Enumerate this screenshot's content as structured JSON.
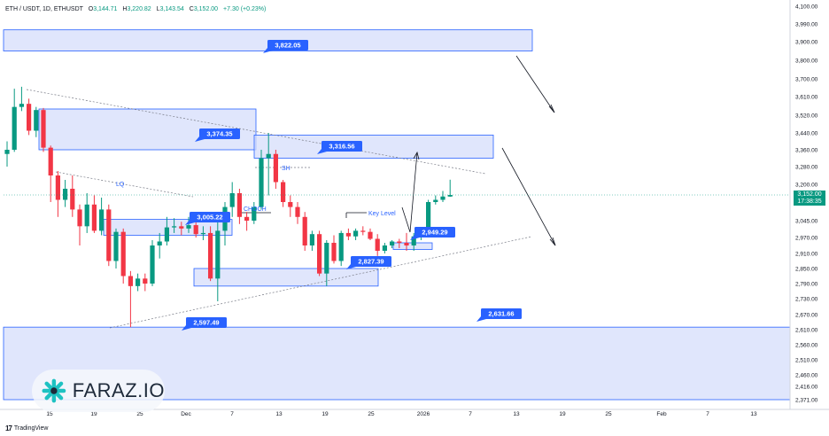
{
  "header": {
    "symbol": "ETH / USDT, 1D, ETHUSDT",
    "o_label": "O",
    "o_value": "3,144.71",
    "h_label": "H",
    "h_value": "3,220.82",
    "l_label": "L",
    "l_value": "3,143.54",
    "c_label": "C",
    "c_value": "3,152.00",
    "change": "+7.30 (+0.23%)"
  },
  "footer": {
    "tradingview_label": "TradingView"
  },
  "watermark": {
    "text": "FARAZ.IO"
  },
  "colors": {
    "up": "#089981",
    "down": "#f23645",
    "zone_fill": "#d6defb",
    "zone_border": "#2962ff",
    "label_bg": "#2962ff",
    "grid": "#e0e3eb",
    "text": "#131722"
  },
  "chart_data": {
    "type": "candlestick",
    "ylim": [
      2371,
      4100
    ],
    "y_ticks": [
      "4,100.00",
      "3,990.00",
      "3,900.00",
      "3,800.00",
      "3,700.00",
      "3,610.00",
      "3,520.00",
      "3,440.00",
      "3,360.00",
      "3,280.00",
      "3,200.00",
      "3,120.00",
      "3,045.00",
      "2,970.00",
      "2,910.00",
      "2,850.00",
      "2,790.00",
      "2,730.00",
      "2,670.00",
      "2,610.00",
      "2,560.00",
      "2,510.00",
      "2,460.00",
      "2,416.00",
      "2,371.00"
    ],
    "x_ticks": [
      "15",
      "19",
      "25",
      "Dec",
      "7",
      "13",
      "19",
      "25",
      "2026",
      "7",
      "13",
      "19",
      "25",
      "Feb",
      "7",
      "13"
    ],
    "current_price": "3,152.00",
    "countdown": "17:38:35",
    "candles": [
      {
        "o": 3340,
        "h": 3400,
        "l": 3280,
        "c": 3360
      },
      {
        "o": 3360,
        "h": 3650,
        "l": 3350,
        "c": 3560
      },
      {
        "o": 3560,
        "h": 3660,
        "l": 3540,
        "c": 3575
      },
      {
        "o": 3575,
        "h": 3600,
        "l": 3430,
        "c": 3450
      },
      {
        "o": 3450,
        "h": 3560,
        "l": 3420,
        "c": 3545
      },
      {
        "o": 3545,
        "h": 3555,
        "l": 3350,
        "c": 3370
      },
      {
        "o": 3370,
        "h": 3380,
        "l": 3120,
        "c": 3240
      },
      {
        "o": 3240,
        "h": 3260,
        "l": 3060,
        "c": 3130
      },
      {
        "o": 3130,
        "h": 3220,
        "l": 3100,
        "c": 3180
      },
      {
        "o": 3180,
        "h": 3240,
        "l": 3060,
        "c": 3090
      },
      {
        "o": 3090,
        "h": 3110,
        "l": 2940,
        "c": 3020
      },
      {
        "o": 3020,
        "h": 3160,
        "l": 2990,
        "c": 3110
      },
      {
        "o": 3110,
        "h": 3150,
        "l": 2990,
        "c": 3000
      },
      {
        "o": 3000,
        "h": 3140,
        "l": 2980,
        "c": 3090
      },
      {
        "o": 3090,
        "h": 3110,
        "l": 2860,
        "c": 2880
      },
      {
        "o": 2880,
        "h": 3010,
        "l": 2850,
        "c": 2995
      },
      {
        "o": 2995,
        "h": 3010,
        "l": 2790,
        "c": 2820
      },
      {
        "o": 2820,
        "h": 2840,
        "l": 2620,
        "c": 2780
      },
      {
        "o": 2780,
        "h": 2830,
        "l": 2760,
        "c": 2810
      },
      {
        "o": 2810,
        "h": 2830,
        "l": 2760,
        "c": 2790
      },
      {
        "o": 2790,
        "h": 2960,
        "l": 2780,
        "c": 2940
      },
      {
        "o": 2940,
        "h": 2990,
        "l": 2890,
        "c": 2955
      },
      {
        "o": 2955,
        "h": 3060,
        "l": 2940,
        "c": 3015
      },
      {
        "o": 3015,
        "h": 3055,
        "l": 2990,
        "c": 3020
      },
      {
        "o": 3020,
        "h": 3040,
        "l": 2980,
        "c": 3010
      },
      {
        "o": 3010,
        "h": 3060,
        "l": 2990,
        "c": 3025
      },
      {
        "o": 3025,
        "h": 3050,
        "l": 2970,
        "c": 2985
      },
      {
        "o": 2985,
        "h": 3020,
        "l": 2960,
        "c": 2990
      },
      {
        "o": 2990,
        "h": 3020,
        "l": 2800,
        "c": 2810
      },
      {
        "o": 2810,
        "h": 3040,
        "l": 2720,
        "c": 3000
      },
      {
        "o": 3000,
        "h": 3120,
        "l": 2940,
        "c": 3100
      },
      {
        "o": 3100,
        "h": 3210,
        "l": 3060,
        "c": 3160
      },
      {
        "o": 3160,
        "h": 3180,
        "l": 3030,
        "c": 3060
      },
      {
        "o": 3060,
        "h": 3080,
        "l": 3000,
        "c": 3045
      },
      {
        "o": 3045,
        "h": 3120,
        "l": 3030,
        "c": 3100
      },
      {
        "o": 3100,
        "h": 3360,
        "l": 3090,
        "c": 3320
      },
      {
        "o": 3320,
        "h": 3440,
        "l": 3150,
        "c": 3340
      },
      {
        "o": 3340,
        "h": 3360,
        "l": 3180,
        "c": 3210
      },
      {
        "o": 3210,
        "h": 3220,
        "l": 3100,
        "c": 3120
      },
      {
        "o": 3120,
        "h": 3150,
        "l": 3060,
        "c": 3100
      },
      {
        "o": 3100,
        "h": 3120,
        "l": 3030,
        "c": 3060
      },
      {
        "o": 3060,
        "h": 3080,
        "l": 2920,
        "c": 2940
      },
      {
        "o": 2940,
        "h": 3000,
        "l": 2920,
        "c": 2985
      },
      {
        "o": 2985,
        "h": 3000,
        "l": 2820,
        "c": 2830
      },
      {
        "o": 2830,
        "h": 2960,
        "l": 2780,
        "c": 2950
      },
      {
        "o": 2950,
        "h": 2980,
        "l": 2870,
        "c": 2880
      },
      {
        "o": 2880,
        "h": 3000,
        "l": 2860,
        "c": 2990
      },
      {
        "o": 2990,
        "h": 3010,
        "l": 2960,
        "c": 2975
      },
      {
        "o": 2975,
        "h": 3010,
        "l": 2960,
        "c": 3000
      },
      {
        "o": 3000,
        "h": 3020,
        "l": 2980,
        "c": 2995
      },
      {
        "o": 2995,
        "h": 3010,
        "l": 2960,
        "c": 2965
      },
      {
        "o": 2965,
        "h": 2985,
        "l": 2900,
        "c": 2920
      },
      {
        "o": 2920,
        "h": 2950,
        "l": 2910,
        "c": 2940
      },
      {
        "o": 2940,
        "h": 2960,
        "l": 2930,
        "c": 2955
      },
      {
        "o": 2955,
        "h": 2965,
        "l": 2930,
        "c": 2950
      },
      {
        "o": 2950,
        "h": 2990,
        "l": 2920,
        "c": 2940
      },
      {
        "o": 2940,
        "h": 2990,
        "l": 2920,
        "c": 2975
      },
      {
        "o": 2975,
        "h": 2990,
        "l": 2960,
        "c": 2985
      },
      {
        "o": 2985,
        "h": 3130,
        "l": 2980,
        "c": 3120
      },
      {
        "o": 3120,
        "h": 3150,
        "l": 3110,
        "c": 3130
      },
      {
        "o": 3130,
        "h": 3170,
        "l": 3120,
        "c": 3145
      },
      {
        "o": 3144.71,
        "h": 3220.82,
        "l": 3143.54,
        "c": 3152
      }
    ],
    "zones": [
      {
        "name": "zone-top",
        "top": 3960,
        "bottom": 3850
      },
      {
        "name": "zone-upper-left",
        "top": 3550,
        "bottom": 3360
      },
      {
        "name": "zone-supply",
        "top": 3430,
        "bottom": 3320
      },
      {
        "name": "zone-mid",
        "top": 3050,
        "bottom": 2980
      },
      {
        "name": "zone-demand",
        "top": 2850,
        "bottom": 2780
      },
      {
        "name": "zone-small",
        "top": 2950,
        "bottom": 2925
      },
      {
        "name": "zone-bottom",
        "top": 2620,
        "bottom": 2371
      }
    ],
    "price_labels": [
      "3,822.05",
      "3,374.35",
      "3,316.56",
      "3,005.22",
      "2,949.29",
      "2,827.39",
      "2,597.49",
      "2,631.66"
    ],
    "annotations": [
      "SH",
      "LQ",
      "CHOCH",
      "Key Level"
    ]
  }
}
